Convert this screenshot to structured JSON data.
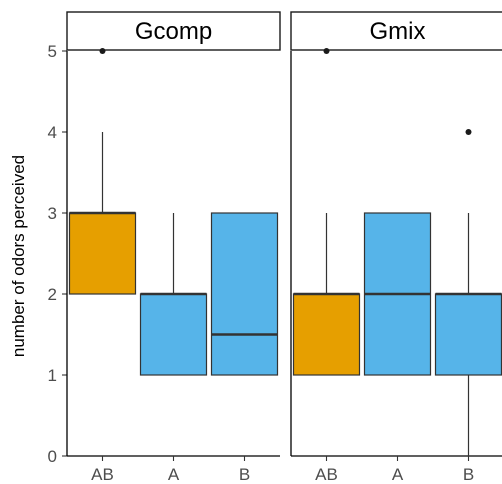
{
  "chart_data": {
    "type": "boxplot",
    "ylabel": "number of odors perceived",
    "xlabel": "",
    "ylim": [
      0,
      5
    ],
    "y_ticks": [
      0,
      1,
      2,
      3,
      4,
      5
    ],
    "grid": false,
    "categories": [
      "AB",
      "A",
      "B"
    ],
    "colors": {
      "AB": "#E69F00",
      "A": "#56B4E9",
      "B": "#56B4E9"
    },
    "panels": [
      {
        "name": "Gcomp",
        "boxes": [
          {
            "category": "AB",
            "min": 2,
            "q1": 2,
            "median": 3,
            "q3": 3,
            "max": 4,
            "outliers": [
              5
            ]
          },
          {
            "category": "A",
            "min": 1,
            "q1": 1,
            "median": 2,
            "q3": 2,
            "max": 3,
            "outliers": []
          },
          {
            "category": "B",
            "min": 1,
            "q1": 1,
            "median": 1.5,
            "q3": 3,
            "max": 3,
            "outliers": []
          }
        ]
      },
      {
        "name": "Gmix",
        "boxes": [
          {
            "category": "AB",
            "min": 1,
            "q1": 1,
            "median": 2,
            "q3": 2,
            "max": 3,
            "outliers": [
              5
            ]
          },
          {
            "category": "A",
            "min": 1,
            "q1": 1,
            "median": 2,
            "q3": 3,
            "max": 3,
            "outliers": []
          },
          {
            "category": "B",
            "min": 0,
            "q1": 1,
            "median": 2,
            "q3": 2,
            "max": 3,
            "outliers": [
              4
            ]
          }
        ]
      }
    ]
  }
}
